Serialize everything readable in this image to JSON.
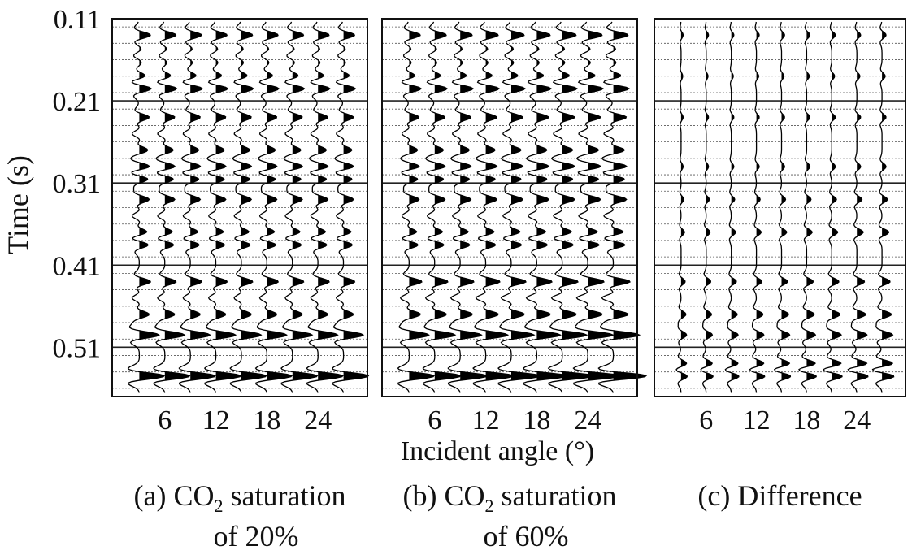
{
  "chart_data": {
    "type": "seismic-wiggle",
    "ylabel": "Time (s)",
    "xlabel": "Incident angle (°)",
    "y_ticks": [
      0.11,
      0.21,
      0.31,
      0.41,
      0.51
    ],
    "x_ticks": [
      6,
      12,
      18,
      24
    ],
    "ylim": [
      0.11,
      0.57
    ],
    "angles": [
      3,
      6,
      9,
      12,
      15,
      18,
      21,
      24,
      27
    ],
    "panels": [
      {
        "id": "a",
        "caption_prefix": "(a) CO",
        "caption_sub": "2",
        "caption_suffix": " saturation",
        "caption_line2": "of 20%",
        "event_times": [
          0.13,
          0.155,
          0.18,
          0.195,
          0.23,
          0.25,
          0.27,
          0.29,
          0.305,
          0.33,
          0.35,
          0.37,
          0.385,
          0.43,
          0.45,
          0.47,
          0.495,
          0.545
        ],
        "event_amps": [
          0.8,
          -0.4,
          0.5,
          0.9,
          0.7,
          -0.5,
          0.6,
          0.8,
          0.7,
          0.7,
          -0.5,
          0.6,
          0.7,
          0.8,
          -0.5,
          0.7,
          1.4,
          1.8
        ],
        "amp_gain_by_angle": 0.0
      },
      {
        "id": "b",
        "caption_prefix": "(b) CO",
        "caption_sub": "2",
        "caption_suffix": " saturation",
        "caption_line2": "of 60%",
        "event_times": [
          0.13,
          0.155,
          0.18,
          0.195,
          0.23,
          0.25,
          0.27,
          0.29,
          0.305,
          0.33,
          0.35,
          0.37,
          0.385,
          0.43,
          0.45,
          0.47,
          0.495,
          0.545
        ],
        "event_amps": [
          0.8,
          -0.4,
          0.5,
          0.9,
          0.7,
          -0.5,
          0.6,
          0.8,
          0.7,
          0.7,
          -0.5,
          0.6,
          0.7,
          0.9,
          -0.6,
          0.8,
          1.4,
          1.8
        ],
        "amp_gain_by_angle": 0.04
      },
      {
        "id": "c",
        "caption_prefix": "(c) Difference",
        "caption_sub": "",
        "caption_suffix": "",
        "caption_line2": "",
        "event_times": [
          0.13,
          0.18,
          0.23,
          0.29,
          0.33,
          0.37,
          0.43,
          0.47,
          0.495,
          0.53,
          0.545
        ],
        "event_amps": [
          0.15,
          0.12,
          0.15,
          0.15,
          0.2,
          0.25,
          0.3,
          0.35,
          0.4,
          0.45,
          0.5
        ],
        "amp_gain_by_angle": 0.12
      }
    ]
  }
}
